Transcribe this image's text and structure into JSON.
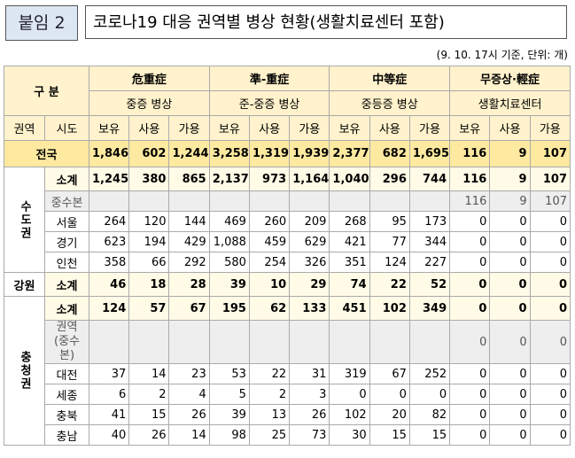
{
  "header": {
    "badge": "붙임 2",
    "title": "코로나19 대응 권역별 병상 현황(생활치료센터 포함)"
  },
  "note": "(9. 10. 17시 기준, 단위: 개)",
  "table": {
    "corner": "구 분",
    "groups": [
      {
        "name": "危重症",
        "sub": "중증 병상"
      },
      {
        "name": "準-重症",
        "sub": "준-중증 병상"
      },
      {
        "name": "中等症",
        "sub": "중등증 병상"
      },
      {
        "name": "무증상·輕症",
        "sub": "생활치료센터"
      }
    ],
    "region_col": "권역",
    "sido_col": "시도",
    "metrics": [
      "보유",
      "사용",
      "가용"
    ],
    "national": {
      "label": "전국",
      "values": [
        "1,846",
        "602",
        "1,244",
        "3,258",
        "1,319",
        "1,939",
        "2,377",
        "682",
        "1,695",
        "116",
        "9",
        "107"
      ]
    },
    "regions": [
      {
        "name": "수도권",
        "rows": [
          {
            "label": "소계",
            "values": [
              "1,245",
              "380",
              "865",
              "2,137",
              "973",
              "1,164",
              "1,040",
              "296",
              "744",
              "116",
              "9",
              "107"
            ]
          },
          {
            "label": "중수본",
            "values": [
              null,
              null,
              null,
              null,
              null,
              null,
              null,
              null,
              null,
              "116",
              "9",
              "107"
            ]
          },
          {
            "label": "서울",
            "values": [
              "264",
              "120",
              "144",
              "469",
              "260",
              "209",
              "268",
              "95",
              "173",
              "0",
              "0",
              "0"
            ]
          },
          {
            "label": "경기",
            "values": [
              "623",
              "194",
              "429",
              "1,088",
              "459",
              "629",
              "421",
              "77",
              "344",
              "0",
              "0",
              "0"
            ]
          },
          {
            "label": "인천",
            "values": [
              "358",
              "66",
              "292",
              "580",
              "254",
              "326",
              "351",
              "124",
              "227",
              "0",
              "0",
              "0"
            ]
          }
        ]
      },
      {
        "name": "강원",
        "rows": [
          {
            "label": "소계",
            "values": [
              "46",
              "18",
              "28",
              "39",
              "10",
              "29",
              "74",
              "22",
              "52",
              "0",
              "0",
              "0"
            ]
          }
        ]
      },
      {
        "name": "충청권",
        "rows": [
          {
            "label": "소계",
            "values": [
              "124",
              "57",
              "67",
              "195",
              "62",
              "133",
              "451",
              "102",
              "349",
              "0",
              "0",
              "0"
            ]
          },
          {
            "label": "권역\n(중수본)",
            "values": [
              null,
              null,
              null,
              null,
              null,
              null,
              null,
              null,
              null,
              "0",
              "0",
              "0"
            ]
          },
          {
            "label": "대전",
            "values": [
              "37",
              "14",
              "23",
              "53",
              "22",
              "31",
              "319",
              "67",
              "252",
              "0",
              "0",
              "0"
            ]
          },
          {
            "label": "세종",
            "values": [
              "6",
              "2",
              "4",
              "5",
              "2",
              "3",
              "0",
              "0",
              "0",
              "0",
              "0",
              "0"
            ]
          },
          {
            "label": "충북",
            "values": [
              "41",
              "15",
              "26",
              "39",
              "13",
              "26",
              "102",
              "20",
              "82",
              "0",
              "0",
              "0"
            ]
          },
          {
            "label": "충남",
            "values": [
              "40",
              "26",
              "14",
              "98",
              "25",
              "73",
              "30",
              "15",
              "15",
              "0",
              "0",
              "0"
            ]
          }
        ]
      }
    ]
  }
}
